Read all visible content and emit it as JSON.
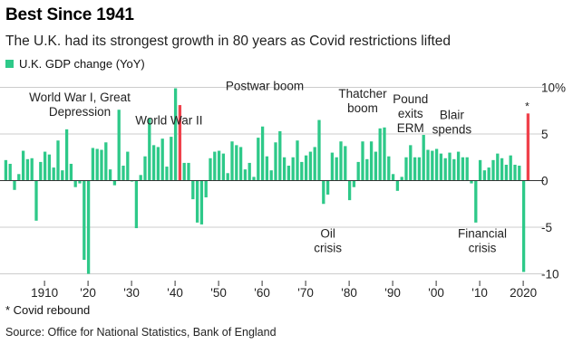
{
  "title": "Best Since 1941",
  "subtitle": "The U.K. had its strongest growth in 80 years as Covid restrictions lifted",
  "footnote": "* Covid rebound",
  "source": "Source: Office for National Statistics, Bank of England",
  "colors": {
    "bar": "#2ec989",
    "highlight": "#f0414b",
    "zero_line": "#333333",
    "grid": "#cccccc"
  },
  "chart_data": {
    "type": "bar",
    "legend": [
      {
        "label": "U.K. GDP change (YoY)",
        "color": "#2ec989"
      }
    ],
    "ylim": [
      -11,
      11
    ],
    "y_ticks": [
      {
        "value": 10,
        "label": "10%"
      },
      {
        "value": 5,
        "label": "5"
      },
      {
        "value": 0,
        "label": "0"
      },
      {
        "value": -5,
        "label": "-5"
      },
      {
        "value": -10,
        "label": "-10"
      }
    ],
    "x_ticks": [
      {
        "value": 1910,
        "label": "1910"
      },
      {
        "value": 1920,
        "label": "'20"
      },
      {
        "value": 1930,
        "label": "'30"
      },
      {
        "value": 1940,
        "label": "'40"
      },
      {
        "value": 1950,
        "label": "'50"
      },
      {
        "value": 1960,
        "label": "'60"
      },
      {
        "value": 1970,
        "label": "'70"
      },
      {
        "value": 1980,
        "label": "'80"
      },
      {
        "value": 1990,
        "label": "'90"
      },
      {
        "value": 2000,
        "label": "'00"
      },
      {
        "value": 2010,
        "label": "'10"
      },
      {
        "value": 2020,
        "label": "2020"
      }
    ],
    "x": [
      1901,
      1902,
      1903,
      1904,
      1905,
      1906,
      1907,
      1908,
      1909,
      1910,
      1911,
      1912,
      1913,
      1914,
      1915,
      1916,
      1917,
      1918,
      1919,
      1920,
      1921,
      1922,
      1923,
      1924,
      1925,
      1926,
      1927,
      1928,
      1929,
      1930,
      1931,
      1932,
      1933,
      1934,
      1935,
      1936,
      1937,
      1938,
      1939,
      1940,
      1941,
      1942,
      1943,
      1944,
      1945,
      1946,
      1947,
      1948,
      1949,
      1950,
      1951,
      1952,
      1953,
      1954,
      1955,
      1956,
      1957,
      1958,
      1959,
      1960,
      1961,
      1962,
      1963,
      1964,
      1965,
      1966,
      1967,
      1968,
      1969,
      1970,
      1971,
      1972,
      1973,
      1974,
      1975,
      1976,
      1977,
      1978,
      1979,
      1980,
      1981,
      1982,
      1983,
      1984,
      1985,
      1986,
      1987,
      1988,
      1989,
      1990,
      1991,
      1992,
      1993,
      1994,
      1995,
      1996,
      1997,
      1998,
      1999,
      2000,
      2001,
      2002,
      2003,
      2004,
      2005,
      2006,
      2007,
      2008,
      2009,
      2010,
      2011,
      2012,
      2013,
      2014,
      2015,
      2016,
      2017,
      2018,
      2019,
      2020,
      2021
    ],
    "values": [
      2.2,
      1.8,
      -1.0,
      0.7,
      3.2,
      2.3,
      2.4,
      -4.3,
      2.0,
      3.1,
      2.8,
      1.4,
      4.3,
      1.1,
      5.5,
      1.8,
      -0.7,
      -0.3,
      -8.5,
      -10.0,
      3.5,
      3.4,
      3.3,
      4.1,
      1.2,
      -0.5,
      7.6,
      1.6,
      3.1,
      -0.1,
      -5.1,
      0.6,
      2.6,
      6.7,
      3.8,
      3.6,
      4.5,
      1.5,
      4.7,
      9.9,
      8.1,
      1.9,
      1.9,
      -2.0,
      -4.5,
      -4.7,
      -1.8,
      2.4,
      3.1,
      3.2,
      2.9,
      0.8,
      4.2,
      3.8,
      3.6,
      1.2,
      1.9,
      0.4,
      4.6,
      5.8,
      2.6,
      1.1,
      4.1,
      5.3,
      2.5,
      1.6,
      2.5,
      4.3,
      2.0,
      2.7,
      3.1,
      3.6,
      6.5,
      -2.5,
      -1.5,
      3.0,
      2.5,
      4.2,
      3.7,
      -2.1,
      -0.7,
      2.0,
      4.2,
      2.3,
      4.2,
      3.1,
      5.6,
      5.7,
      2.6,
      0.7,
      -1.1,
      0.4,
      2.5,
      3.8,
      2.5,
      2.5,
      4.9,
      3.3,
      3.2,
      3.4,
      2.9,
      2.4,
      3.0,
      2.3,
      3.1,
      2.5,
      2.5,
      -0.3,
      -4.5,
      2.2,
      1.1,
      1.4,
      2.2,
      2.9,
      2.4,
      1.7,
      2.7,
      1.7,
      1.6,
      -9.8,
      7.2
    ],
    "highlights": [
      1941,
      2021
    ],
    "annotations": [
      {
        "lines": [
          "World War I, Great",
          "Depression"
        ],
        "x": 1918,
        "y": 8.5
      },
      {
        "lines": [
          "World War II"
        ],
        "x": 1938.5,
        "y": 6.0
      },
      {
        "lines": [
          "Postwar boom"
        ],
        "x": 1960.5,
        "y": 9.7
      },
      {
        "lines": [
          "Thatcher",
          "boom"
        ],
        "x": 1983,
        "y": 8.9
      },
      {
        "lines": [
          "Pound",
          "exits",
          "ERM"
        ],
        "x": 1994,
        "y": 8.3
      },
      {
        "lines": [
          "Blair",
          "spends"
        ],
        "x": 2003.5,
        "y": 6.6
      },
      {
        "lines": [
          "Oil",
          "crisis"
        ],
        "x": 1975,
        "y": -6.1
      },
      {
        "lines": [
          "Financial",
          "crisis"
        ],
        "x": 2010.5,
        "y": -6.1
      }
    ],
    "highlight_marker": {
      "text": "*",
      "x": 2021
    }
  }
}
